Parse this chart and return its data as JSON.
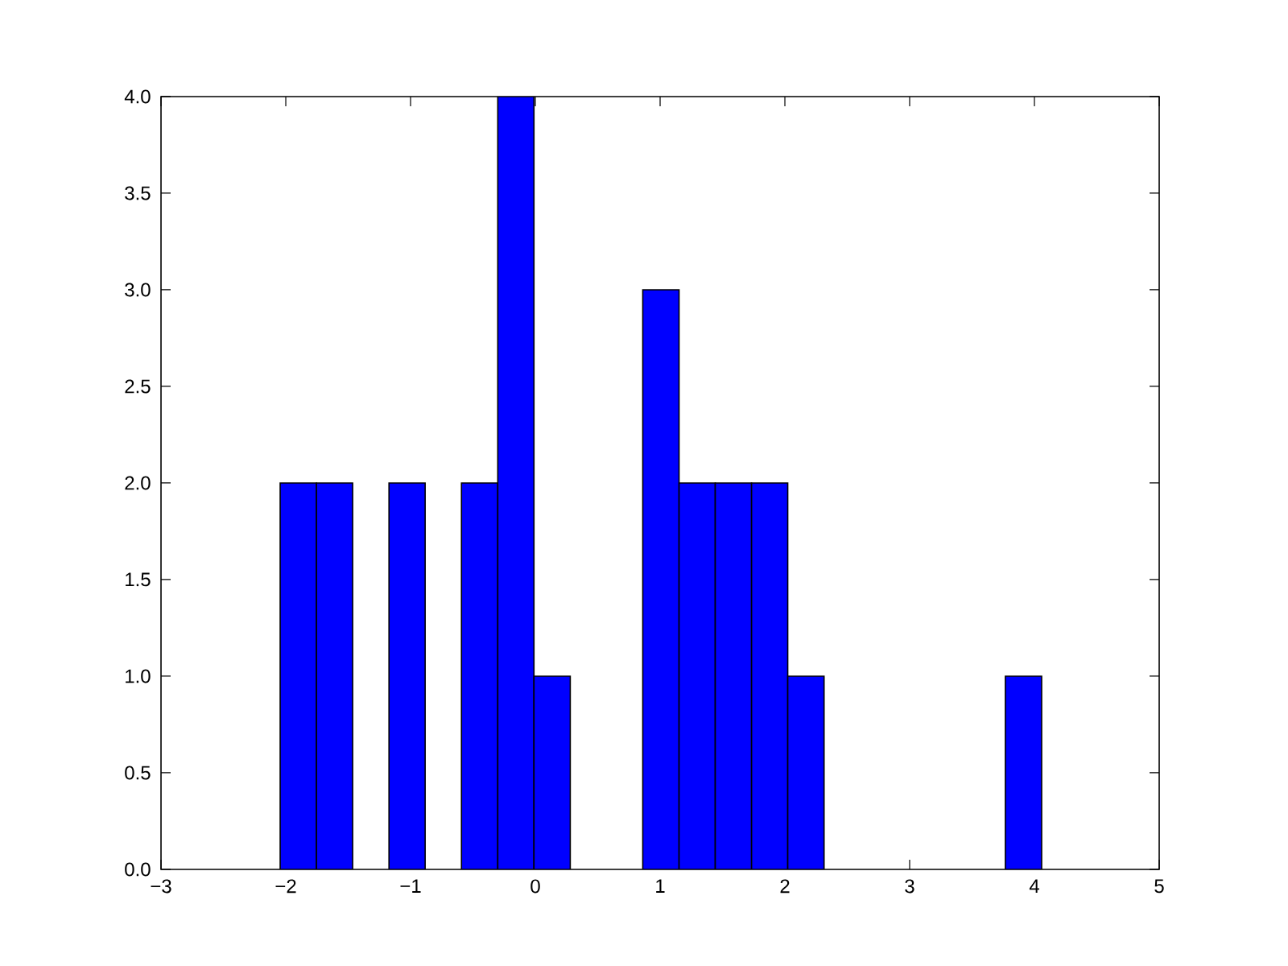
{
  "chart_data": {
    "type": "histogram",
    "bins": [
      -2.045,
      -1.754,
      -1.464,
      -1.173,
      -0.883,
      -0.592,
      -0.301,
      -0.011,
      0.28,
      0.57,
      0.861,
      1.152,
      1.442,
      1.733,
      2.023,
      2.314,
      2.605,
      2.895,
      3.186,
      3.476,
      3.767,
      4.058
    ],
    "values": [
      2,
      2,
      0,
      2,
      0,
      2,
      4,
      1,
      0,
      0,
      3,
      2,
      2,
      2,
      1,
      0,
      0,
      0,
      0,
      0,
      1
    ],
    "color": "#0000ff",
    "xlim": [
      -3,
      5
    ],
    "xticks": [
      {
        "value": -3,
        "label": "−3"
      },
      {
        "value": -2,
        "label": "−2"
      },
      {
        "value": -1,
        "label": "−1"
      },
      0,
      1,
      2,
      3,
      4,
      5
    ],
    "ylim": [
      0,
      4
    ],
    "yticks": [
      {
        "value": 0,
        "label": "0.0"
      },
      0.5,
      {
        "value": 1,
        "label": "1.0"
      },
      1.5,
      {
        "value": 2,
        "label": "2.0"
      },
      2.5,
      {
        "value": 3,
        "label": "3.0"
      },
      3.5,
      {
        "value": 4,
        "label": "4.0"
      }
    ]
  }
}
